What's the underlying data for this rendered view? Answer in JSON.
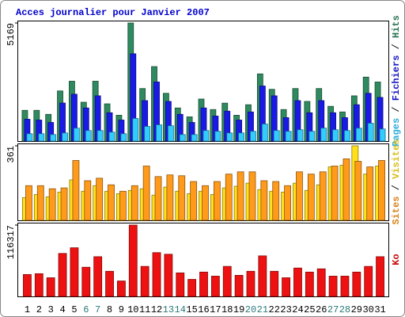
{
  "title": "Acces journalier pour Janvier 2007",
  "legend_separator": " / ",
  "weekend_indices": [
    5,
    6,
    12,
    13,
    19,
    20,
    26,
    27
  ],
  "weekend_label_color": "#2a7a7a",
  "chart_data": [
    {
      "type": "bar",
      "ylim": [
        0,
        5169
      ],
      "yticks": [
        5169
      ],
      "categories": [
        "1",
        "2",
        "3",
        "4",
        "5",
        "6",
        "7",
        "8",
        "9",
        "10",
        "11",
        "12",
        "13",
        "14",
        "15",
        "16",
        "17",
        "18",
        "19",
        "20",
        "21",
        "22",
        "23",
        "24",
        "25",
        "26",
        "27",
        "28",
        "29",
        "30",
        "31"
      ],
      "series": [
        {
          "name": "Hits",
          "color": "#2f8a5f",
          "values": [
            1345,
            1345,
            1170,
            2195,
            2620,
            1700,
            2620,
            1630,
            1130,
            5169,
            2300,
            3260,
            2090,
            1450,
            1060,
            1840,
            1380,
            1660,
            1130,
            1590,
            2940,
            2265,
            1380,
            2300,
            1735,
            2300,
            1520,
            1275,
            1980,
            2800,
            2585
          ]
        },
        {
          "name": "Fichiers",
          "color": "#1a1ae6",
          "values": [
            955,
            920,
            815,
            1665,
            2050,
            1450,
            1980,
            1240,
            920,
            3820,
            1770,
            2585,
            1735,
            1170,
            815,
            1450,
            1095,
            1310,
            920,
            1275,
            2410,
            1980,
            1025,
            1770,
            1240,
            1770,
            1240,
            1025,
            1590,
            2090,
            1910
          ]
        },
        {
          "name": "Pages",
          "color": "#33ccff",
          "values": [
            320,
            320,
            285,
            355,
            565,
            460,
            460,
            390,
            320,
            990,
            640,
            710,
            670,
            285,
            285,
            460,
            425,
            355,
            355,
            425,
            745,
            460,
            425,
            495,
            425,
            565,
            495,
            460,
            565,
            780,
            530
          ]
        }
      ]
    },
    {
      "type": "bar",
      "ylim": [
        0,
        361
      ],
      "yticks": [
        361
      ],
      "series": [
        {
          "name": "Visites",
          "color": "#ffe01a",
          "values": [
            110,
            125,
            114,
            137,
            196,
            141,
            168,
            141,
            129,
            145,
            153,
            122,
            161,
            141,
            129,
            141,
            125,
            157,
            165,
            180,
            149,
            141,
            137,
            180,
            145,
            172,
            259,
            267,
            361,
            224,
            263
          ]
        },
        {
          "name": "Sites",
          "color": "#ff9a1a",
          "values": [
            168,
            168,
            153,
            157,
            290,
            192,
            204,
            172,
            141,
            168,
            263,
            212,
            220,
            216,
            188,
            168,
            188,
            224,
            235,
            235,
            192,
            188,
            168,
            235,
            224,
            235,
            263,
            298,
            286,
            259,
            290
          ]
        }
      ]
    },
    {
      "type": "bar",
      "ylim": [
        0,
        116317
      ],
      "yticks": [
        116317
      ],
      "series": [
        {
          "name": "Ko",
          "color": "#ee1111",
          "values": [
            35690,
            37010,
            30400,
            70050,
            79300,
            47580,
            64760,
            40970,
            25110,
            116317,
            48900,
            71380,
            68730,
            38330,
            27760,
            39650,
            33040,
            48900,
            34370,
            40970,
            66090,
            40970,
            30400,
            46260,
            39650,
            44940,
            33040,
            33040,
            39650,
            48900,
            64760
          ]
        }
      ]
    }
  ]
}
